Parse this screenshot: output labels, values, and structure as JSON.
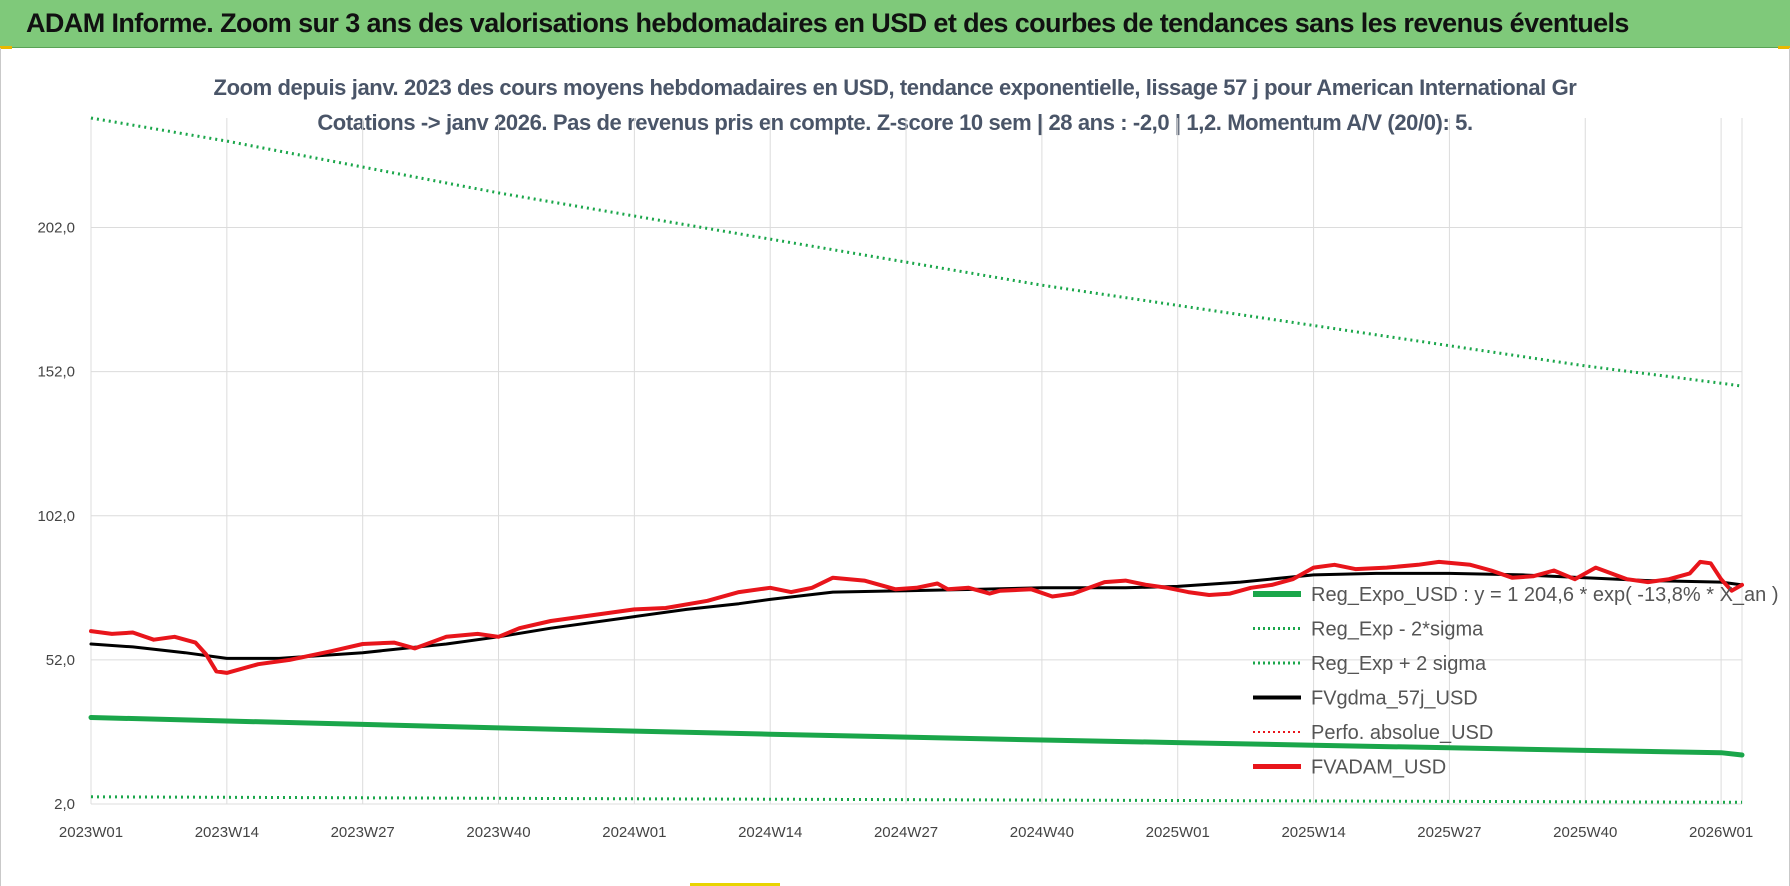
{
  "banner": {
    "title": "ADAM Informe. Zoom sur 3 ans des valorisations hebdomadaires en USD et des courbes de tendances sans les revenus éventuels"
  },
  "colors": {
    "banner_bg": "#7fc97a",
    "green": "#1aa64a",
    "red": "#e8151b",
    "black": "#000000",
    "grid": "#dcdcdc",
    "title": "#4a5568"
  },
  "chart_data": {
    "type": "line",
    "title": "Zoom depuis janv. 2023 des cours moyens hebdomadaires en USD, tendance exponentielle, lissage 57 j pour American International Gr",
    "subtitle": "Cotations -> janv 2026. Pas de revenus pris en compte. Z-score 10 sem | 28 ans : -2,0 | 1,2. Momentum A/V (20/0): 5.",
    "xlabel": "",
    "ylabel": "",
    "ylim": [
      2,
      240
    ],
    "y_ticks": [
      "2,0",
      "52,0",
      "102,0",
      "152,0",
      "202,0"
    ],
    "y_tick_values": [
      2,
      52,
      102,
      152,
      202
    ],
    "x_range": [
      1,
      159
    ],
    "x_ticks": [
      "2023W01",
      "2023W14",
      "2023W27",
      "2023W40",
      "2024W01",
      "2024W14",
      "2024W27",
      "2024W40",
      "2025W01",
      "2025W14",
      "2025W27",
      "2025W40",
      "2026W01"
    ],
    "x_tick_weeks": [
      1,
      14,
      27,
      40,
      53,
      66,
      79,
      92,
      105,
      118,
      131,
      144,
      157
    ],
    "grid": true,
    "legend_position": "bottom-right",
    "series": [
      {
        "name": "Reg_Expo_USD : y = 1 204,6 * exp( -13,8% * X_an )",
        "style": "solid",
        "color": "#1aa64a",
        "weeks": [
          1,
          14,
          27,
          40,
          53,
          66,
          79,
          92,
          105,
          118,
          131,
          144,
          157,
          159
        ],
        "values": [
          32.0,
          30.8,
          29.6,
          28.4,
          27.3,
          26.2,
          25.2,
          24.2,
          23.3,
          22.4,
          21.5,
          20.6,
          19.8,
          19.0
        ]
      },
      {
        "name": "Reg_Exp - 2*sigma",
        "style": "dotted",
        "color": "#1aa64a",
        "weeks": [
          1,
          53,
          105,
          159
        ],
        "values": [
          4.5,
          3.8,
          3.2,
          2.6
        ]
      },
      {
        "name": "Reg_Exp + 2 sigma",
        "style": "dotted",
        "color": "#1aa64a",
        "weeks": [
          1,
          14,
          27,
          40,
          53,
          66,
          79,
          92,
          105,
          118,
          131,
          144,
          157,
          159
        ],
        "values": [
          240.0,
          232.0,
          223.0,
          214.0,
          206.0,
          198.0,
          190.0,
          182.0,
          175.0,
          168.0,
          161.0,
          154.0,
          148.0,
          147.0
        ]
      },
      {
        "name": "FVgdma_57j_USD",
        "style": "solid",
        "color": "#000000",
        "weeks": [
          1,
          5,
          10,
          14,
          19,
          27,
          35,
          40,
          45,
          53,
          58,
          63,
          66,
          72,
          79,
          86,
          92,
          100,
          105,
          111,
          118,
          124,
          131,
          138,
          144,
          150,
          157,
          159
        ],
        "values": [
          57.5,
          56.5,
          54.5,
          52.5,
          52.5,
          54.5,
          57.5,
          60.0,
          63.0,
          67.0,
          69.5,
          71.5,
          73.0,
          75.5,
          76.0,
          76.5,
          77.0,
          77.0,
          77.5,
          79.0,
          81.5,
          82.0,
          82.0,
          81.5,
          80.5,
          79.5,
          79.0,
          78.0
        ]
      },
      {
        "name": "Perfo. absolue_USD",
        "style": "dotted",
        "color": "#e8151b",
        "weeks": [],
        "values": []
      },
      {
        "name": "FVADAM_USD",
        "style": "solid",
        "color": "#e8151b",
        "weeks": [
          1,
          3,
          5,
          7,
          9,
          11,
          12,
          13,
          14,
          17,
          20,
          22,
          24,
          27,
          30,
          32,
          35,
          38,
          40,
          42,
          45,
          48,
          53,
          56,
          60,
          63,
          66,
          68,
          70,
          72,
          75,
          78,
          80,
          82,
          83,
          85,
          87,
          88,
          91,
          93,
          95,
          98,
          100,
          102,
          104,
          106,
          108,
          110,
          112,
          114,
          116,
          118,
          120,
          122,
          125,
          128,
          130,
          133,
          135,
          137,
          139,
          141,
          143,
          145,
          148,
          150,
          152,
          154,
          155,
          156,
          157,
          158,
          159
        ],
        "values": [
          62.0,
          61.0,
          61.5,
          59.0,
          60.0,
          58.0,
          54.0,
          48.0,
          47.5,
          50.5,
          52.0,
          53.5,
          55.0,
          57.5,
          58.0,
          56.0,
          60.0,
          61.0,
          60.0,
          63.0,
          65.5,
          67.0,
          69.5,
          70.0,
          72.5,
          75.5,
          77.0,
          75.5,
          77.0,
          80.5,
          79.5,
          76.5,
          77.0,
          78.5,
          76.5,
          77.0,
          75.0,
          76.0,
          76.5,
          74.0,
          75.0,
          79.0,
          79.5,
          78.0,
          77.0,
          75.5,
          74.5,
          75.0,
          77.0,
          78.0,
          80.0,
          84.0,
          85.0,
          83.5,
          84.0,
          85.0,
          86.0,
          85.0,
          83.0,
          80.5,
          81.0,
          83.0,
          80.0,
          84.0,
          80.0,
          79.0,
          80.0,
          82.0,
          86.0,
          85.5,
          80.0,
          76.0,
          78.0
        ]
      }
    ]
  }
}
